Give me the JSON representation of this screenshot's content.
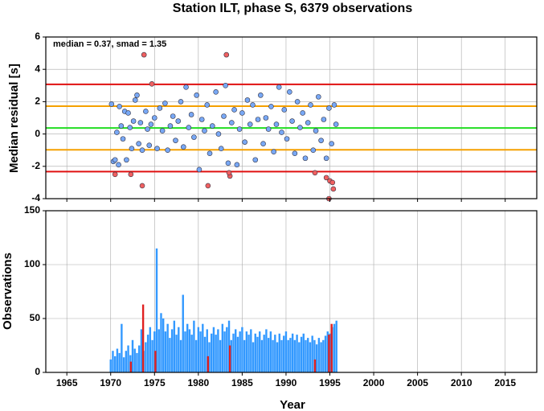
{
  "chart_data": [
    {
      "type": "scatter",
      "title": "Station ILT, phase S, 6379 observations",
      "ylabel": "Median residual [s]",
      "annotation": "median = 0.37, smad = 1.35",
      "xlim": [
        1962.6,
        2018.6
      ],
      "ylim": [
        -4,
        6
      ],
      "yticks": [
        -4,
        -2,
        0,
        2,
        4,
        6
      ],
      "grid": true,
      "hlines": [
        {
          "value": 3.07,
          "color": "#e01010"
        },
        {
          "value": 1.72,
          "color": "#f5a000"
        },
        {
          "value": 0.37,
          "color": "#22dd22"
        },
        {
          "value": -0.98,
          "color": "#f5a000"
        },
        {
          "value": -2.33,
          "color": "#e01010"
        }
      ],
      "series": [
        {
          "color": "#78a8f5",
          "x": [
            1970.1,
            1970.3,
            1970.5,
            1970.7,
            1970.9,
            1971.0,
            1971.2,
            1971.4,
            1971.6,
            1971.8,
            1972.0,
            1972.2,
            1972.4,
            1972.6,
            1972.8,
            1973.0,
            1973.2,
            1973.4,
            1973.6,
            1974.0,
            1974.2,
            1974.4,
            1974.6,
            1975.0,
            1975.3,
            1975.6,
            1975.9,
            1976.2,
            1976.5,
            1976.8,
            1977.1,
            1977.4,
            1977.7,
            1978.0,
            1978.3,
            1978.6,
            1978.9,
            1979.2,
            1979.5,
            1979.8,
            1980.1,
            1980.4,
            1980.7,
            1981.0,
            1981.3,
            1981.6,
            1982.0,
            1982.3,
            1982.6,
            1982.9,
            1983.1,
            1983.4,
            1983.8,
            1984.1,
            1984.4,
            1984.7,
            1985.0,
            1985.3,
            1985.6,
            1985.9,
            1986.2,
            1986.5,
            1986.8,
            1987.1,
            1987.4,
            1987.7,
            1988.0,
            1988.3,
            1988.6,
            1988.9,
            1989.2,
            1989.5,
            1989.8,
            1990.1,
            1990.4,
            1990.7,
            1991.0,
            1991.3,
            1991.6,
            1991.9,
            1992.2,
            1992.5,
            1992.8,
            1993.1,
            1993.4,
            1993.7,
            1994.0,
            1994.3,
            1994.6,
            1994.9,
            1995.2,
            1995.5,
            1995.7
          ],
          "values": [
            1.85,
            -1.7,
            -1.6,
            0.1,
            -1.9,
            1.7,
            0.5,
            -0.3,
            1.4,
            -1.6,
            1.3,
            0.4,
            -0.9,
            0.8,
            2.1,
            2.4,
            -0.6,
            0.7,
            -1.0,
            1.4,
            0.3,
            -0.7,
            0.6,
            1.0,
            -0.9,
            1.6,
            0.2,
            1.9,
            -1.0,
            0.5,
            1.1,
            -0.4,
            0.8,
            2.0,
            -0.8,
            2.9,
            0.4,
            1.2,
            -0.2,
            2.4,
            -2.2,
            0.9,
            0.2,
            1.8,
            -1.2,
            0.5,
            2.6,
            0.0,
            -0.9,
            1.1,
            3.0,
            -1.8,
            0.7,
            1.5,
            -1.9,
            0.3,
            1.3,
            -0.5,
            2.1,
            0.6,
            1.8,
            -1.6,
            0.9,
            2.4,
            -0.6,
            1.0,
            0.3,
            1.7,
            -1.1,
            0.6,
            2.9,
            0.1,
            1.5,
            -0.3,
            2.6,
            0.8,
            -1.2,
            2.0,
            0.4,
            1.3,
            -1.5,
            0.7,
            1.8,
            -1.0,
            0.2,
            2.3,
            -0.4,
            0.9,
            -1.5,
            1.6,
            -0.6,
            1.8,
            0.6
          ]
        },
        {
          "color": "#f06060",
          "x": [
            1970.5,
            1972.3,
            1973.6,
            1973.8,
            1974.7,
            1981.1,
            1983.2,
            1983.6,
            1983.5,
            1993.3,
            1994.6,
            1995.0,
            1995.3,
            1995.4,
            1994.9
          ],
          "values": [
            -2.5,
            -2.5,
            -3.2,
            4.9,
            3.1,
            -3.2,
            4.9,
            -2.6,
            -2.4,
            -2.4,
            -2.7,
            -2.9,
            -3.0,
            -3.4,
            -4.0
          ]
        }
      ]
    },
    {
      "type": "bar",
      "ylabel": "Observations",
      "xlabel": "Year",
      "xlim": [
        1962.6,
        2018.6
      ],
      "xticks": [
        1965,
        1970,
        1975,
        1980,
        1985,
        1990,
        1995,
        2000,
        2005,
        2010,
        2015
      ],
      "ylim": [
        0,
        150
      ],
      "yticks": [
        0,
        50,
        100,
        150
      ],
      "grid": true,
      "series": [
        {
          "color": "#3399ff",
          "x": [
            1970.0,
            1970.25,
            1970.5,
            1970.75,
            1971.0,
            1971.25,
            1971.5,
            1971.75,
            1972.0,
            1972.25,
            1972.5,
            1972.75,
            1973.0,
            1973.25,
            1973.5,
            1973.75,
            1974.0,
            1974.25,
            1974.5,
            1974.75,
            1975.0,
            1975.25,
            1975.5,
            1975.75,
            1976.0,
            1976.25,
            1976.5,
            1976.75,
            1977.0,
            1977.25,
            1977.5,
            1977.75,
            1978.0,
            1978.25,
            1978.5,
            1978.75,
            1979.0,
            1979.25,
            1979.5,
            1979.75,
            1980.0,
            1980.25,
            1980.5,
            1980.75,
            1981.0,
            1981.25,
            1981.5,
            1981.75,
            1982.0,
            1982.25,
            1982.5,
            1982.75,
            1983.0,
            1983.25,
            1983.5,
            1983.75,
            1984.0,
            1984.25,
            1984.5,
            1984.75,
            1985.0,
            1985.25,
            1985.5,
            1985.75,
            1986.0,
            1986.25,
            1986.5,
            1986.75,
            1987.0,
            1987.25,
            1987.5,
            1987.75,
            1988.0,
            1988.25,
            1988.5,
            1988.75,
            1989.0,
            1989.25,
            1989.5,
            1989.75,
            1990.0,
            1990.25,
            1990.5,
            1990.75,
            1991.0,
            1991.25,
            1991.5,
            1991.75,
            1992.0,
            1992.25,
            1992.5,
            1992.75,
            1993.0,
            1993.25,
            1993.5,
            1993.75,
            1994.0,
            1994.25,
            1994.5,
            1994.75,
            1995.0,
            1995.25,
            1995.5,
            1995.75
          ],
          "values": [
            12,
            20,
            15,
            22,
            18,
            45,
            14,
            20,
            25,
            16,
            30,
            22,
            18,
            25,
            40,
            20,
            28,
            35,
            42,
            30,
            38,
            115,
            40,
            55,
            50,
            38,
            45,
            32,
            40,
            48,
            35,
            42,
            30,
            72,
            38,
            45,
            40,
            35,
            48,
            30,
            42,
            38,
            45,
            33,
            40,
            28,
            36,
            42,
            35,
            40,
            30,
            45,
            38,
            42,
            48,
            30,
            36,
            40,
            33,
            38,
            42,
            30,
            38,
            35,
            40,
            28,
            36,
            33,
            38,
            30,
            35,
            40,
            32,
            38,
            30,
            35,
            28,
            36,
            30,
            34,
            38,
            30,
            32,
            36,
            30,
            35,
            28,
            33,
            36,
            30,
            32,
            28,
            34,
            30,
            26,
            32,
            28,
            30,
            34,
            38,
            36,
            42,
            45,
            48
          ]
        },
        {
          "color": "#e02020",
          "x": [
            1972.3,
            1973.7,
            1975.1,
            1981.1,
            1983.6,
            1993.3,
            1994.9,
            1995.2
          ],
          "values": [
            10,
            63,
            20,
            15,
            25,
            12,
            35,
            45
          ]
        }
      ]
    }
  ]
}
